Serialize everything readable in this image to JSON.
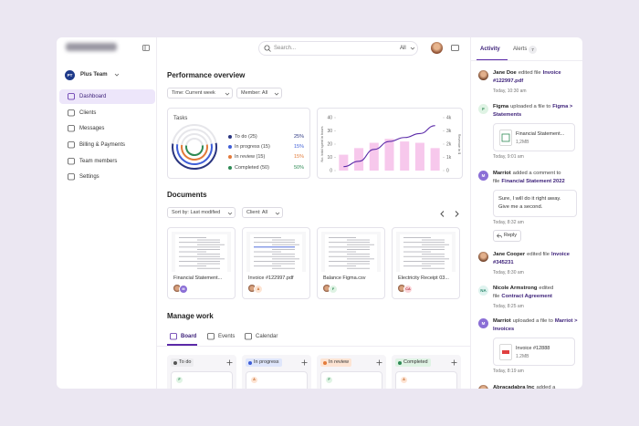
{
  "sidebar": {
    "team": {
      "initials": "PT",
      "name": "Plus Team"
    },
    "nav": [
      "Dashboard",
      "Clients",
      "Messages",
      "Billing & Payments",
      "Team members",
      "Settings"
    ]
  },
  "header": {
    "search": "Search...",
    "filter": "All"
  },
  "performance": {
    "title": "Performance overview",
    "filters": [
      "Time: Current week",
      "Member: All"
    ],
    "tasks": {
      "title": "Tasks",
      "items": [
        {
          "label": "To do (25)",
          "percent": "25%"
        },
        {
          "label": "In progress (15)",
          "percent": "15%"
        },
        {
          "label": "In review (15)",
          "percent": "15%"
        },
        {
          "label": "Completed (50)",
          "percent": "50%"
        }
      ]
    }
  },
  "chart_data": {
    "type": "bar",
    "y_label": "No. total spent in hours",
    "y2_label": "Revenue in $",
    "categories": [
      null,
      null,
      null,
      null,
      null,
      null,
      null
    ],
    "ylim": [
      0,
      40
    ],
    "yticks": [
      0,
      10,
      20,
      30,
      40
    ],
    "y2lim": [
      0,
      4000
    ],
    "y2ticks": [
      0,
      {
        "value": 1000,
        "label": "1k"
      },
      {
        "value": 2000,
        "label": "2k"
      },
      {
        "value": 3000,
        "label": "3k"
      },
      {
        "value": 4000,
        "label": "4k"
      }
    ],
    "series": [
      {
        "color": "#f7c8ec",
        "values": [
          12,
          17,
          21,
          24,
          22,
          21,
          17
        ]
      },
      {
        "type": "line",
        "axis": "y2",
        "color": "#5b2aa8",
        "values": [
          300,
          700,
          1600,
          2200,
          2500,
          2800,
          3400
        ]
      }
    ]
  },
  "documents": {
    "title": "Documents",
    "filters": [
      "Sort by: Last modified",
      "Client: All"
    ],
    "files": [
      {
        "name": "Financial Statement...",
        "avatar": "M"
      },
      {
        "name": "Invoice #122997.pdf",
        "avatar": "A"
      },
      {
        "name": "Balance Figma.csv",
        "avatar": "F"
      },
      {
        "name": "Electricity Receipt 03...",
        "avatar": "CA"
      }
    ]
  },
  "manage": {
    "title": "Manage work",
    "tabs": [
      "Board",
      "Events",
      "Calendar"
    ],
    "columns": [
      {
        "name": "To do",
        "card": "F"
      },
      {
        "name": "In progress",
        "card": "A"
      },
      {
        "name": "In review",
        "card": "F"
      },
      {
        "name": "Completed",
        "card": "A"
      }
    ]
  },
  "activity": {
    "tabs": [
      "Activity",
      "Alerts"
    ],
    "alert_count": 7,
    "items": [
      {
        "actor": "Jane Doe",
        "action": "edited file",
        "target": "Invoice #122997.pdf",
        "time": "Today, 10:30 am"
      },
      {
        "avatar": "F",
        "actor": "Figma",
        "action": "uploaded a file to",
        "target": "Figma > Statements",
        "file": {
          "name": "Financial Statement...",
          "size": "1,2MB"
        },
        "time": "Today, 9:01 am"
      },
      {
        "avatar": "M",
        "actor": "Marriot",
        "action": "added a comment to file",
        "target": "Financial Statement 2022",
        "comment": "Sure, I will do it right away. Give me a second.",
        "time": "Today, 8:32 am",
        "reply": "Reply"
      },
      {
        "actor": "Jane Cooper",
        "action": "edited file",
        "target": "Invoice #345231",
        "time": "Today, 8:30 am"
      },
      {
        "avatar": "NA",
        "actor": "Nicole Armstrong",
        "action": "edited file",
        "target": "Contract Agreement",
        "time": "Today, 8:25 am"
      },
      {
        "avatar": "M",
        "actor": "Marriot",
        "action": "uploaded a file to",
        "target": "Marriot > Invoices",
        "file": {
          "name": "Invoice #12888",
          "size": "1.2MB"
        },
        "time": "Today, 8:19 am"
      },
      {
        "actor": "Abracadabra Inc",
        "action": "added a"
      }
    ]
  }
}
